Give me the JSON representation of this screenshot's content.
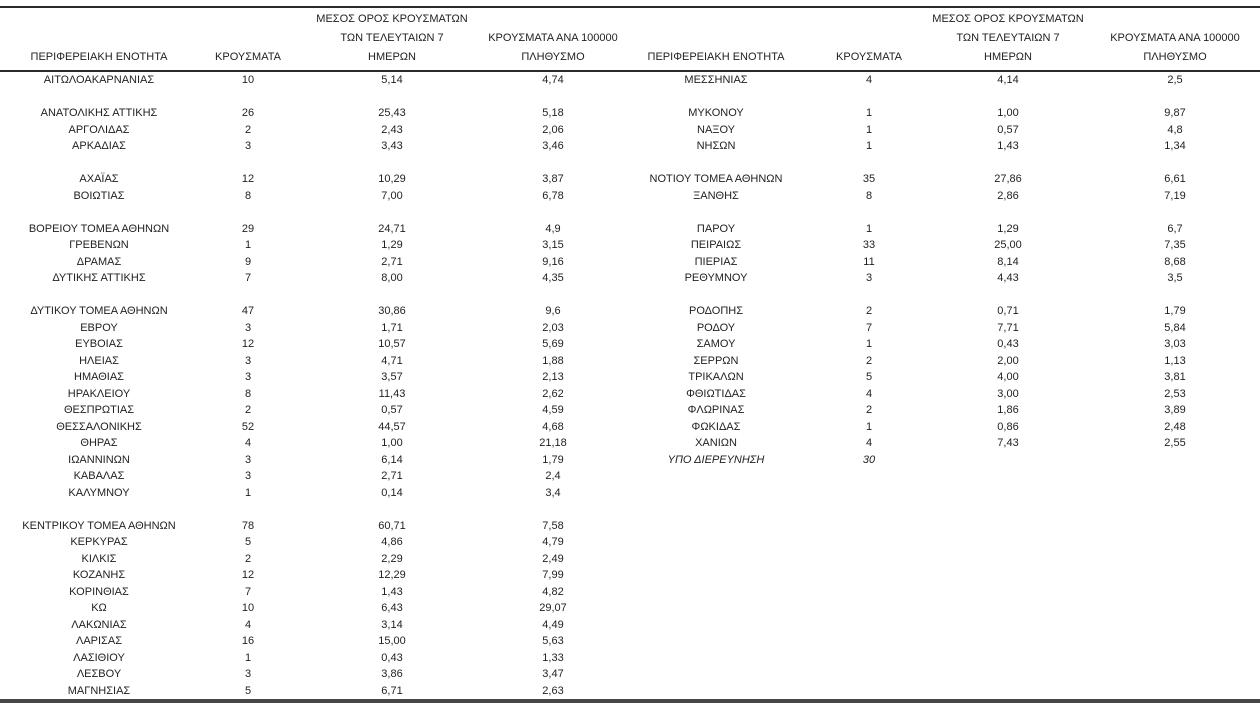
{
  "page": {
    "background": "#ffffff",
    "text_color": "#1f1f1f",
    "rule_color": "#2b2b2b",
    "bottom_rule_color": "#474747"
  },
  "table": {
    "headers": {
      "region": "ΠΕΡΙΦΕΡΕΙΑΚΗ ΕΝΟΤΗΤΑ",
      "cases": "ΚΡΟΥΣΜΑΤΑ",
      "avg7_lines": [
        "ΜΕΣΟΣ ΟΡΟΣ ΚΡΟΥΣΜΑΤΩΝ",
        "ΤΩΝ ΤΕΛΕΥΤΑΙΩΝ 7",
        "ΗΜΕΡΩΝ"
      ],
      "per100k_lines": [
        "ΚΡΟΥΣΜΑΤΑ ΑΝΑ 100000",
        "ΠΛΗΘΥΣΜΟ"
      ]
    },
    "left_rows": [
      {
        "region": "ΑΙΤΩΛΟΑΚΑΡΝΑΝΙΑΣ",
        "cases": "10",
        "avg7": "5,14",
        "per100k": "4,74"
      },
      null,
      {
        "region": "ΑΝΑΤΟΛΙΚΗΣ ΑΤΤΙΚΗΣ",
        "cases": "26",
        "avg7": "25,43",
        "per100k": "5,18"
      },
      {
        "region": "ΑΡΓΟΛΙΔΑΣ",
        "cases": "2",
        "avg7": "2,43",
        "per100k": "2,06"
      },
      {
        "region": "ΑΡΚΑΔΙΑΣ",
        "cases": "3",
        "avg7": "3,43",
        "per100k": "3,46"
      },
      null,
      {
        "region": "ΑΧΑΪΑΣ",
        "cases": "12",
        "avg7": "10,29",
        "per100k": "3,87"
      },
      {
        "region": "ΒΟΙΩΤΙΑΣ",
        "cases": "8",
        "avg7": "7,00",
        "per100k": "6,78"
      },
      null,
      {
        "region": "ΒΟΡΕΙΟΥ ΤΟΜΕΑ ΑΘΗΝΩΝ",
        "cases": "29",
        "avg7": "24,71",
        "per100k": "4,9"
      },
      {
        "region": "ΓΡΕΒΕΝΩΝ",
        "cases": "1",
        "avg7": "1,29",
        "per100k": "3,15"
      },
      {
        "region": "ΔΡΑΜΑΣ",
        "cases": "9",
        "avg7": "2,71",
        "per100k": "9,16"
      },
      {
        "region": "ΔΥΤΙΚΗΣ ΑΤΤΙΚΗΣ",
        "cases": "7",
        "avg7": "8,00",
        "per100k": "4,35"
      },
      null,
      {
        "region": "ΔΥΤΙΚΟΥ ΤΟΜΕΑ ΑΘΗΝΩΝ",
        "cases": "47",
        "avg7": "30,86",
        "per100k": "9,6"
      },
      {
        "region": "ΕΒΡΟΥ",
        "cases": "3",
        "avg7": "1,71",
        "per100k": "2,03"
      },
      {
        "region": "ΕΥΒΟΙΑΣ",
        "cases": "12",
        "avg7": "10,57",
        "per100k": "5,69"
      },
      {
        "region": "ΗΛΕΙΑΣ",
        "cases": "3",
        "avg7": "4,71",
        "per100k": "1,88"
      },
      {
        "region": "ΗΜΑΘΙΑΣ",
        "cases": "3",
        "avg7": "3,57",
        "per100k": "2,13"
      },
      {
        "region": "ΗΡΑΚΛΕΙΟΥ",
        "cases": "8",
        "avg7": "11,43",
        "per100k": "2,62"
      },
      {
        "region": "ΘΕΣΠΡΩΤΙΑΣ",
        "cases": "2",
        "avg7": "0,57",
        "per100k": "4,59"
      },
      {
        "region": "ΘΕΣΣΑΛΟΝΙΚΗΣ",
        "cases": "52",
        "avg7": "44,57",
        "per100k": "4,68"
      },
      {
        "region": "ΘΗΡΑΣ",
        "cases": "4",
        "avg7": "1,00",
        "per100k": "21,18"
      },
      {
        "region": "ΙΩΑΝΝΙΝΩΝ",
        "cases": "3",
        "avg7": "6,14",
        "per100k": "1,79"
      },
      {
        "region": "ΚΑΒΑΛΑΣ",
        "cases": "3",
        "avg7": "2,71",
        "per100k": "2,4"
      },
      {
        "region": "ΚΑΛΥΜΝΟΥ",
        "cases": "1",
        "avg7": "0,14",
        "per100k": "3,4"
      },
      null,
      {
        "region": "ΚΕΝΤΡΙΚΟΥ ΤΟΜΕΑ ΑΘΗΝΩΝ",
        "cases": "78",
        "avg7": "60,71",
        "per100k": "7,58"
      },
      {
        "region": "ΚΕΡΚΥΡΑΣ",
        "cases": "5",
        "avg7": "4,86",
        "per100k": "4,79"
      },
      {
        "region": "ΚΙΛΚΙΣ",
        "cases": "2",
        "avg7": "2,29",
        "per100k": "2,49"
      },
      {
        "region": "ΚΟΖΑΝΗΣ",
        "cases": "12",
        "avg7": "12,29",
        "per100k": "7,99"
      },
      {
        "region": "ΚΟΡΙΝΘΙΑΣ",
        "cases": "7",
        "avg7": "1,43",
        "per100k": "4,82"
      },
      {
        "region": "ΚΩ",
        "cases": "10",
        "avg7": "6,43",
        "per100k": "29,07"
      },
      {
        "region": "ΛΑΚΩΝΙΑΣ",
        "cases": "4",
        "avg7": "3,14",
        "per100k": "4,49"
      },
      {
        "region": "ΛΑΡΙΣΑΣ",
        "cases": "16",
        "avg7": "15,00",
        "per100k": "5,63"
      },
      {
        "region": "ΛΑΣΙΘΙΟΥ",
        "cases": "1",
        "avg7": "0,43",
        "per100k": "1,33"
      },
      {
        "region": "ΛΕΣΒΟΥ",
        "cases": "3",
        "avg7": "3,86",
        "per100k": "3,47"
      },
      {
        "region": "ΜΑΓΝΗΣΙΑΣ",
        "cases": "5",
        "avg7": "6,71",
        "per100k": "2,63"
      }
    ],
    "right_rows": [
      {
        "region": "ΜΕΣΣΗΝΙΑΣ",
        "cases": "4",
        "avg7": "4,14",
        "per100k": "2,5"
      },
      null,
      {
        "region": "ΜΥΚΟΝΟΥ",
        "cases": "1",
        "avg7": "1,00",
        "per100k": "9,87"
      },
      {
        "region": "ΝΑΞΟΥ",
        "cases": "1",
        "avg7": "0,57",
        "per100k": "4,8"
      },
      {
        "region": "ΝΗΣΩΝ",
        "cases": "1",
        "avg7": "1,43",
        "per100k": "1,34"
      },
      null,
      {
        "region": "ΝΟΤΙΟΥ ΤΟΜΕΑ ΑΘΗΝΩΝ",
        "cases": "35",
        "avg7": "27,86",
        "per100k": "6,61"
      },
      {
        "region": "ΞΑΝΘΗΣ",
        "cases": "8",
        "avg7": "2,86",
        "per100k": "7,19"
      },
      null,
      {
        "region": "ΠΑΡΟΥ",
        "cases": "1",
        "avg7": "1,29",
        "per100k": "6,7"
      },
      {
        "region": "ΠΕΙΡΑΙΩΣ",
        "cases": "33",
        "avg7": "25,00",
        "per100k": "7,35"
      },
      {
        "region": "ΠΙΕΡΙΑΣ",
        "cases": "11",
        "avg7": "8,14",
        "per100k": "8,68"
      },
      {
        "region": "ΡΕΘΥΜΝΟΥ",
        "cases": "3",
        "avg7": "4,43",
        "per100k": "3,5"
      },
      null,
      {
        "region": "ΡΟΔΟΠΗΣ",
        "cases": "2",
        "avg7": "0,71",
        "per100k": "1,79"
      },
      {
        "region": "ΡΟΔΟΥ",
        "cases": "7",
        "avg7": "7,71",
        "per100k": "5,84"
      },
      {
        "region": "ΣΑΜΟΥ",
        "cases": "1",
        "avg7": "0,43",
        "per100k": "3,03"
      },
      {
        "region": "ΣΕΡΡΩΝ",
        "cases": "2",
        "avg7": "2,00",
        "per100k": "1,13"
      },
      {
        "region": "ΤΡΙΚΑΛΩΝ",
        "cases": "5",
        "avg7": "4,00",
        "per100k": "3,81"
      },
      {
        "region": "ΦΘΙΩΤΙΔΑΣ",
        "cases": "4",
        "avg7": "3,00",
        "per100k": "2,53"
      },
      {
        "region": "ΦΛΩΡΙΝΑΣ",
        "cases": "2",
        "avg7": "1,86",
        "per100k": "3,89"
      },
      {
        "region": "ΦΩΚΙΔΑΣ",
        "cases": "1",
        "avg7": "0,86",
        "per100k": "2,48"
      },
      {
        "region": "ΧΑΝΙΩΝ",
        "cases": "4",
        "avg7": "7,43",
        "per100k": "2,55"
      },
      {
        "region": "ΥΠΟ ΔΙΕΡΕΥΝΗΣΗ",
        "cases": "30",
        "avg7": "",
        "per100k": "",
        "italic": true
      },
      null,
      null,
      null,
      null,
      null,
      null,
      null,
      null,
      null,
      null,
      null,
      null,
      null,
      null
    ]
  }
}
